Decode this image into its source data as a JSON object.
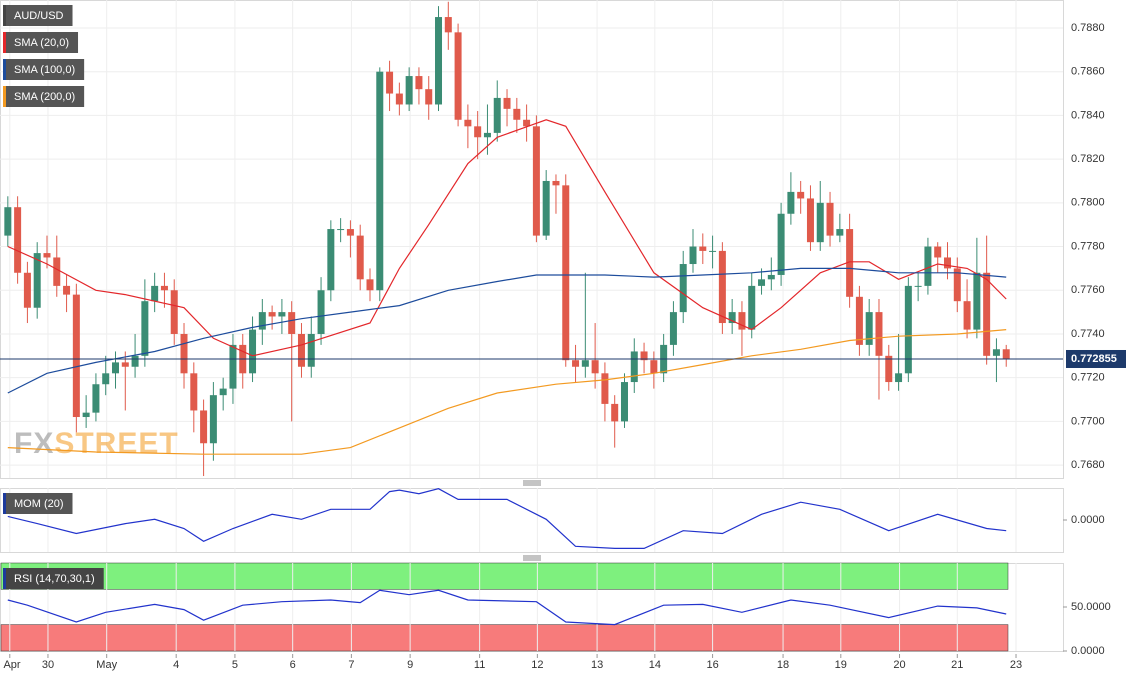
{
  "chart_data": [
    {
      "type": "candlestick",
      "title": "AUD/USD",
      "watermark": [
        "FX",
        "STREET"
      ],
      "up_color": "#3b8c74",
      "down_color": "#e05a4b",
      "ylim": [
        0.76741,
        0.78928
      ],
      "yticks": [
        {
          "value": 0.768,
          "label": "0.7680"
        },
        {
          "value": 0.77,
          "label": "0.7700"
        },
        {
          "value": 0.772,
          "label": "0.7720"
        },
        {
          "value": 0.774,
          "label": "0.7740"
        },
        {
          "value": 0.776,
          "label": "0.7760"
        },
        {
          "value": 0.778,
          "label": "0.7780"
        },
        {
          "value": 0.78,
          "label": "0.7800"
        },
        {
          "value": 0.782,
          "label": "0.7820"
        },
        {
          "value": 0.784,
          "label": "0.7840"
        },
        {
          "value": 0.786,
          "label": "0.7860"
        },
        {
          "value": 0.788,
          "label": "0.7880"
        }
      ],
      "xlim": [
        -0.8,
        107.8
      ],
      "xticks": [
        {
          "value": 0.2,
          "label": "Apr"
        },
        {
          "value": 4.1,
          "label": "30"
        },
        {
          "value": 10.1,
          "label": "May"
        },
        {
          "value": 17.2,
          "label": "4"
        },
        {
          "value": 23.2,
          "label": "5"
        },
        {
          "value": 29.1,
          "label": "6"
        },
        {
          "value": 35.1,
          "label": "7"
        },
        {
          "value": 41.1,
          "label": "9"
        },
        {
          "value": 48.2,
          "label": "11"
        },
        {
          "value": 54.1,
          "label": "12"
        },
        {
          "value": 60.2,
          "label": "13"
        },
        {
          "value": 66.1,
          "label": "14"
        },
        {
          "value": 72.0,
          "label": "16"
        },
        {
          "value": 79.2,
          "label": "18"
        },
        {
          "value": 85.1,
          "label": "19"
        },
        {
          "value": 91.1,
          "label": "20"
        },
        {
          "value": 97.0,
          "label": "21"
        },
        {
          "value": 103.0,
          "label": "23"
        }
      ],
      "grid": true,
      "last": 0.772855,
      "last_color": "#1d3a6b",
      "candles": [
        [
          0.7785,
          0.7803,
          0.778,
          0.7798
        ],
        [
          0.7798,
          0.7803,
          0.7763,
          0.7768
        ],
        [
          0.7768,
          0.7773,
          0.7745,
          0.7752
        ],
        [
          0.7752,
          0.7782,
          0.7747,
          0.7777
        ],
        [
          0.7777,
          0.7785,
          0.777,
          0.7775
        ],
        [
          0.7775,
          0.7785,
          0.7757,
          0.7762
        ],
        [
          0.7762,
          0.7767,
          0.775,
          0.7758
        ],
        [
          0.7758,
          0.7763,
          0.7695,
          0.7702
        ],
        [
          0.7702,
          0.7712,
          0.7697,
          0.7704
        ],
        [
          0.7704,
          0.7722,
          0.77,
          0.7717
        ],
        [
          0.7717,
          0.773,
          0.7712,
          0.7722
        ],
        [
          0.7722,
          0.7732,
          0.7715,
          0.7727
        ],
        [
          0.7727,
          0.7732,
          0.7705,
          0.7725
        ],
        [
          0.7725,
          0.774,
          0.772,
          0.773
        ],
        [
          0.773,
          0.7765,
          0.7725,
          0.7755
        ],
        [
          0.7755,
          0.7768,
          0.775,
          0.7762
        ],
        [
          0.7762,
          0.7768,
          0.7752,
          0.776
        ],
        [
          0.776,
          0.7765,
          0.7735,
          0.774
        ],
        [
          0.774,
          0.7745,
          0.7715,
          0.7722
        ],
        [
          0.7722,
          0.7727,
          0.7695,
          0.7705
        ],
        [
          0.7705,
          0.771,
          0.7675,
          0.769
        ],
        [
          0.769,
          0.7718,
          0.7682,
          0.7712
        ],
        [
          0.7712,
          0.772,
          0.7705,
          0.7715
        ],
        [
          0.7715,
          0.774,
          0.7708,
          0.7735
        ],
        [
          0.7735,
          0.774,
          0.7715,
          0.7722
        ],
        [
          0.7722,
          0.7748,
          0.7718,
          0.7742
        ],
        [
          0.7742,
          0.7756,
          0.7735,
          0.775
        ],
        [
          0.775,
          0.7753,
          0.7742,
          0.7748
        ],
        [
          0.7748,
          0.7756,
          0.774,
          0.775
        ],
        [
          0.775,
          0.7755,
          0.77,
          0.774
        ],
        [
          0.774,
          0.7745,
          0.772,
          0.7725
        ],
        [
          0.7725,
          0.7748,
          0.772,
          0.774
        ],
        [
          0.774,
          0.7766,
          0.7735,
          0.776
        ],
        [
          0.776,
          0.7792,
          0.7755,
          0.7788
        ],
        [
          0.7788,
          0.7793,
          0.7782,
          0.7788
        ],
        [
          0.7788,
          0.7792,
          0.7775,
          0.7785
        ],
        [
          0.7785,
          0.779,
          0.776,
          0.7765
        ],
        [
          0.7765,
          0.777,
          0.7755,
          0.776
        ],
        [
          0.776,
          0.7862,
          0.7755,
          0.786
        ],
        [
          0.786,
          0.7865,
          0.7842,
          0.785
        ],
        [
          0.785,
          0.7855,
          0.784,
          0.7845
        ],
        [
          0.7845,
          0.7862,
          0.7842,
          0.7858
        ],
        [
          0.7858,
          0.7862,
          0.7845,
          0.7852
        ],
        [
          0.7852,
          0.7858,
          0.7838,
          0.7845
        ],
        [
          0.7845,
          0.789,
          0.7842,
          0.7885
        ],
        [
          0.7885,
          0.7892,
          0.787,
          0.7878
        ],
        [
          0.7878,
          0.7882,
          0.7835,
          0.7838
        ],
        [
          0.7838,
          0.7845,
          0.7825,
          0.7835
        ],
        [
          0.7835,
          0.7842,
          0.782,
          0.783
        ],
        [
          0.783,
          0.7845,
          0.7822,
          0.7832
        ],
        [
          0.7832,
          0.7856,
          0.7828,
          0.7848
        ],
        [
          0.7848,
          0.7852,
          0.7835,
          0.7843
        ],
        [
          0.7843,
          0.7848,
          0.7832,
          0.7838
        ],
        [
          0.7838,
          0.7845,
          0.7828,
          0.7835
        ],
        [
          0.7835,
          0.784,
          0.7782,
          0.7785
        ],
        [
          0.7785,
          0.7815,
          0.7783,
          0.781
        ],
        [
          0.781,
          0.7813,
          0.7795,
          0.7808
        ],
        [
          0.7808,
          0.7813,
          0.7725,
          0.7728
        ],
        [
          0.7728,
          0.7735,
          0.7718,
          0.7725
        ],
        [
          0.7725,
          0.7768,
          0.772,
          0.7728
        ],
        [
          0.7728,
          0.7745,
          0.7715,
          0.7722
        ],
        [
          0.7722,
          0.7727,
          0.77,
          0.7708
        ],
        [
          0.7708,
          0.7712,
          0.7688,
          0.77
        ],
        [
          0.77,
          0.7722,
          0.7697,
          0.7718
        ],
        [
          0.7718,
          0.7738,
          0.7713,
          0.7732
        ],
        [
          0.7732,
          0.7736,
          0.7722,
          0.7728
        ],
        [
          0.7728,
          0.7732,
          0.7715,
          0.7722
        ],
        [
          0.7722,
          0.774,
          0.7718,
          0.7735
        ],
        [
          0.7735,
          0.7755,
          0.773,
          0.775
        ],
        [
          0.775,
          0.7778,
          0.7745,
          0.7772
        ],
        [
          0.7772,
          0.7788,
          0.7768,
          0.778
        ],
        [
          0.778,
          0.7786,
          0.7772,
          0.7778
        ],
        [
          0.7778,
          0.7785,
          0.777,
          0.7778
        ],
        [
          0.7778,
          0.7782,
          0.774,
          0.7745
        ],
        [
          0.7745,
          0.7756,
          0.774,
          0.775
        ],
        [
          0.775,
          0.7755,
          0.773,
          0.7742
        ],
        [
          0.7742,
          0.7768,
          0.7738,
          0.7762
        ],
        [
          0.7762,
          0.777,
          0.7758,
          0.7765
        ],
        [
          0.7765,
          0.7775,
          0.776,
          0.7767
        ],
        [
          0.7767,
          0.78,
          0.7762,
          0.7795
        ],
        [
          0.7795,
          0.7814,
          0.779,
          0.7805
        ],
        [
          0.7805,
          0.781,
          0.7795,
          0.7802
        ],
        [
          0.7802,
          0.7808,
          0.7778,
          0.7782
        ],
        [
          0.7782,
          0.781,
          0.7778,
          0.78
        ],
        [
          0.78,
          0.7805,
          0.778,
          0.7785
        ],
        [
          0.7785,
          0.7795,
          0.7782,
          0.7788
        ],
        [
          0.7788,
          0.7795,
          0.7752,
          0.7757
        ],
        [
          0.7757,
          0.7762,
          0.773,
          0.7735
        ],
        [
          0.7735,
          0.7756,
          0.773,
          0.775
        ],
        [
          0.775,
          0.7756,
          0.771,
          0.773
        ],
        [
          0.773,
          0.7735,
          0.7714,
          0.7718
        ],
        [
          0.7718,
          0.774,
          0.7714,
          0.7722
        ],
        [
          0.7722,
          0.7766,
          0.7718,
          0.7762
        ],
        [
          0.7762,
          0.7768,
          0.7755,
          0.7762
        ],
        [
          0.7762,
          0.7784,
          0.7758,
          0.778
        ],
        [
          0.778,
          0.7782,
          0.7768,
          0.7775
        ],
        [
          0.7775,
          0.7782,
          0.7765,
          0.777
        ],
        [
          0.777,
          0.7775,
          0.775,
          0.7755
        ],
        [
          0.7755,
          0.7765,
          0.7738,
          0.7742
        ],
        [
          0.7742,
          0.7784,
          0.7738,
          0.7768
        ],
        [
          0.7768,
          0.7785,
          0.7726,
          0.773
        ],
        [
          0.773,
          0.7738,
          0.7718,
          0.7733
        ],
        [
          0.7733,
          0.7735,
          0.7725,
          0.772855
        ]
      ],
      "series": [
        {
          "name": "SMA (20,0)",
          "color": "#e3272b",
          "x": [
            0,
            4,
            9,
            12,
            18,
            21,
            25,
            30,
            37,
            40,
            43,
            47,
            50,
            55,
            57,
            61,
            66,
            71,
            76,
            79,
            83,
            86,
            88,
            91,
            95,
            98,
            100,
            102
          ],
          "values": [
            0.778,
            0.7772,
            0.776,
            0.7758,
            0.7752,
            0.7738,
            0.773,
            0.7735,
            0.7745,
            0.777,
            0.779,
            0.7818,
            0.783,
            0.7838,
            0.7835,
            0.7805,
            0.7768,
            0.7752,
            0.7742,
            0.7752,
            0.7768,
            0.7773,
            0.7773,
            0.7765,
            0.7772,
            0.777,
            0.7765,
            0.7756
          ]
        },
        {
          "name": "SMA (100,0)",
          "color": "#1d4c9c",
          "x": [
            0,
            4,
            9,
            15,
            20,
            25,
            30,
            35,
            40,
            45,
            50,
            54,
            57,
            61,
            66,
            71,
            76,
            81,
            86,
            91,
            97,
            102
          ],
          "values": [
            0.7713,
            0.7722,
            0.7727,
            0.7732,
            0.7738,
            0.7743,
            0.7747,
            0.775,
            0.7753,
            0.776,
            0.7764,
            0.7767,
            0.7767,
            0.7767,
            0.7766,
            0.7767,
            0.7768,
            0.777,
            0.777,
            0.7768,
            0.7768,
            0.7766
          ]
        },
        {
          "name": "SMA (200,0)",
          "color": "#f39a21",
          "x": [
            0,
            9,
            20,
            30,
            35,
            40,
            45,
            50,
            56,
            61,
            66,
            71,
            76,
            81,
            86,
            91,
            97,
            102
          ],
          "values": [
            0.7688,
            0.7686,
            0.7685,
            0.7685,
            0.7688,
            0.7697,
            0.7706,
            0.7713,
            0.7717,
            0.7719,
            0.7722,
            0.7726,
            0.773,
            0.7733,
            0.7737,
            0.7739,
            0.774,
            0.7742
          ]
        }
      ]
    },
    {
      "type": "line",
      "title": "MOM (20)",
      "ylim": [
        -0.0045,
        0.0045
      ],
      "yticks": [
        {
          "value": 0,
          "label": "0.0000"
        }
      ],
      "series": [
        {
          "color": "#2233cc",
          "x": [
            0,
            3,
            7,
            12,
            15,
            18,
            20,
            23,
            27,
            30,
            33,
            37,
            39,
            40,
            42,
            44,
            46,
            51,
            55,
            58,
            62,
            65,
            69,
            73,
            77,
            81,
            85,
            90,
            95,
            100,
            102
          ],
          "values": [
            0.0005,
            -0.0005,
            -0.0019,
            -0.0005,
            0.0001,
            -0.0012,
            -0.003,
            -0.0012,
            0.0008,
            0.0001,
            0.0015,
            0.0015,
            0.004,
            0.0042,
            0.0037,
            0.0044,
            0.0029,
            0.0029,
            0.0001,
            -0.0037,
            -0.004,
            -0.004,
            -0.0015,
            -0.0019,
            0.0008,
            0.0025,
            0.0015,
            -0.0015,
            0.0008,
            -0.0012,
            -0.0015
          ]
        }
      ]
    },
    {
      "type": "line",
      "title": "RSI (14,70,30,1)",
      "ylim": [
        0,
        100
      ],
      "yticks": [
        {
          "value": 0,
          "label": "0.0000"
        },
        {
          "value": 50,
          "label": "50.0000"
        }
      ],
      "bands": [
        {
          "from": 70,
          "to": 100,
          "color": "#7ef07e"
        },
        {
          "from": 0,
          "to": 30,
          "color": "#f77b7b"
        }
      ],
      "series": [
        {
          "color": "#2233cc",
          "x": [
            0,
            2,
            7,
            10,
            15,
            18,
            20,
            24,
            28,
            33,
            36,
            38,
            41,
            44,
            47,
            54,
            57,
            62,
            67,
            71,
            75,
            80,
            84,
            90,
            95,
            99,
            102
          ],
          "values": [
            58,
            52,
            33,
            44,
            53,
            47,
            35,
            52,
            56,
            58,
            55,
            69,
            64,
            69,
            58,
            56,
            33,
            30,
            52,
            53,
            44,
            58,
            52,
            38,
            51,
            49,
            42
          ]
        }
      ]
    }
  ]
}
